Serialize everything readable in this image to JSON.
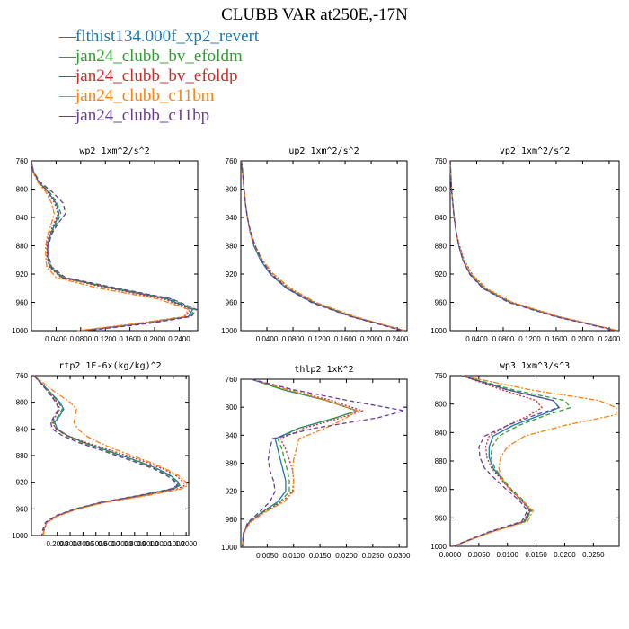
{
  "title": "CLUBB VAR at250E,-17N",
  "legend": [
    {
      "name": "flthist134.000f_xp2_revert",
      "color": "#1f77b4",
      "dash": "solid"
    },
    {
      "name": "jan24_clubb_bv_efoldm",
      "color": "#2ca02c",
      "dash": "dashed"
    },
    {
      "name": "jan24_clubb_bv_efoldp",
      "color": "#d62728",
      "dash": "dotted"
    },
    {
      "name": "jan24_clubb_c11bm",
      "color": "#ff7f0e",
      "dash": "dashdot"
    },
    {
      "name": "jan24_clubb_c11bp",
      "color": "#6a3d9a",
      "dash": "dashed"
    }
  ],
  "chart_data": [
    {
      "type": "line",
      "title": "wp2   1xm^2/s^2",
      "xlim": [
        0,
        0.27
      ],
      "ylim": [
        760,
        1000
      ],
      "y_inverted": true,
      "xticks": [
        0.04,
        0.08,
        0.12,
        0.16,
        0.2,
        0.24
      ],
      "xtick_labels": [
        "0.0400",
        "0.0800",
        "0.1200",
        "0.1600",
        "0.2000",
        "0.2400"
      ],
      "yticks": [
        760,
        800,
        840,
        880,
        920,
        960,
        1000
      ],
      "y": [
        760,
        775,
        790,
        805,
        820,
        835,
        850,
        865,
        880,
        895,
        910,
        925,
        940,
        955,
        970,
        980,
        990,
        1000
      ],
      "series": [
        {
          "x": [
            0.0,
            0.003,
            0.012,
            0.028,
            0.04,
            0.045,
            0.038,
            0.03,
            0.026,
            0.026,
            0.03,
            0.05,
            0.13,
            0.22,
            0.262,
            0.255,
            0.18,
            0.08
          ]
        },
        {
          "x": [
            0.0,
            0.003,
            0.013,
            0.03,
            0.042,
            0.048,
            0.04,
            0.031,
            0.027,
            0.027,
            0.032,
            0.052,
            0.135,
            0.225,
            0.265,
            0.258,
            0.185,
            0.085
          ]
        },
        {
          "x": [
            0.0,
            0.003,
            0.011,
            0.027,
            0.038,
            0.043,
            0.036,
            0.028,
            0.025,
            0.025,
            0.029,
            0.048,
            0.125,
            0.215,
            0.258,
            0.25,
            0.175,
            0.078
          ]
        },
        {
          "x": [
            0.0,
            0.002,
            0.01,
            0.024,
            0.033,
            0.037,
            0.032,
            0.026,
            0.023,
            0.023,
            0.025,
            0.04,
            0.11,
            0.205,
            0.255,
            0.248,
            0.17,
            0.075
          ]
        },
        {
          "x": [
            0.0,
            0.003,
            0.014,
            0.035,
            0.052,
            0.055,
            0.042,
            0.032,
            0.028,
            0.028,
            0.033,
            0.055,
            0.14,
            0.228,
            0.268,
            0.26,
            0.19,
            0.088
          ]
        }
      ]
    },
    {
      "type": "line",
      "title": "up2   1xm^2/s^2",
      "xlim": [
        0,
        0.255
      ],
      "ylim": [
        760,
        1000
      ],
      "y_inverted": true,
      "xticks": [
        0.04,
        0.08,
        0.12,
        0.16,
        0.2,
        0.24
      ],
      "xtick_labels": [
        "0.0400",
        "0.0800",
        "0.1200",
        "0.1600",
        "0.2000",
        "0.2400"
      ],
      "yticks": [
        760,
        800,
        840,
        880,
        920,
        960,
        1000
      ],
      "y": [
        760,
        780,
        800,
        820,
        840,
        860,
        880,
        900,
        920,
        940,
        960,
        980,
        1000
      ],
      "series": [
        {
          "x": [
            0.001,
            0.003,
            0.005,
            0.007,
            0.01,
            0.014,
            0.02,
            0.03,
            0.045,
            0.07,
            0.11,
            0.17,
            0.25
          ]
        },
        {
          "x": [
            0.001,
            0.003,
            0.005,
            0.007,
            0.01,
            0.014,
            0.021,
            0.031,
            0.047,
            0.072,
            0.112,
            0.172,
            0.25
          ]
        },
        {
          "x": [
            0.001,
            0.003,
            0.005,
            0.007,
            0.01,
            0.015,
            0.022,
            0.033,
            0.049,
            0.074,
            0.114,
            0.174,
            0.252
          ]
        },
        {
          "x": [
            0.001,
            0.003,
            0.005,
            0.007,
            0.01,
            0.014,
            0.021,
            0.033,
            0.05,
            0.076,
            0.115,
            0.175,
            0.25
          ]
        },
        {
          "x": [
            0.001,
            0.003,
            0.005,
            0.007,
            0.01,
            0.015,
            0.022,
            0.032,
            0.046,
            0.07,
            0.108,
            0.168,
            0.248
          ]
        }
      ]
    },
    {
      "type": "line",
      "title": "vp2   1xm^2/s^2",
      "xlim": [
        0,
        0.255
      ],
      "ylim": [
        760,
        1000
      ],
      "y_inverted": true,
      "xticks": [
        0.04,
        0.08,
        0.12,
        0.16,
        0.2,
        0.24
      ],
      "xtick_labels": [
        "0.0400",
        "0.0800",
        "0.1200",
        "0.1600",
        "0.2000",
        "0.2400"
      ],
      "yticks": [
        760,
        800,
        840,
        880,
        920,
        960,
        1000
      ],
      "y": [
        760,
        780,
        800,
        820,
        840,
        860,
        880,
        900,
        920,
        940,
        960,
        980,
        1000
      ],
      "series": [
        {
          "x": [
            0.0,
            0.001,
            0.002,
            0.004,
            0.006,
            0.009,
            0.013,
            0.019,
            0.03,
            0.05,
            0.09,
            0.16,
            0.252
          ]
        },
        {
          "x": [
            0.0,
            0.001,
            0.002,
            0.004,
            0.006,
            0.009,
            0.013,
            0.02,
            0.031,
            0.052,
            0.092,
            0.162,
            0.252
          ]
        },
        {
          "x": [
            0.0,
            0.001,
            0.002,
            0.004,
            0.006,
            0.009,
            0.014,
            0.021,
            0.033,
            0.054,
            0.094,
            0.164,
            0.253
          ]
        },
        {
          "x": [
            0.0,
            0.001,
            0.002,
            0.004,
            0.006,
            0.009,
            0.013,
            0.02,
            0.032,
            0.053,
            0.093,
            0.163,
            0.252
          ]
        },
        {
          "x": [
            0.0,
            0.001,
            0.002,
            0.004,
            0.006,
            0.009,
            0.013,
            0.019,
            0.029,
            0.049,
            0.088,
            0.158,
            0.25
          ]
        }
      ]
    },
    {
      "type": "line",
      "title": "rtp2   1E-6x(kg/kg)^2",
      "xlim": [
        0,
        1.22
      ],
      "ylim": [
        760,
        1000
      ],
      "y_inverted": true,
      "xticks": [
        0.2,
        0.3,
        0.4,
        0.5,
        0.6,
        0.7,
        0.8,
        0.9,
        1.0,
        1.1,
        1.2
      ],
      "xtick_labels": [
        "0.2000",
        "0.3000",
        "0.4000",
        "0.5000",
        "0.6000",
        "0.7000",
        "0.8000",
        "0.9000",
        "1.0000",
        "1.1000",
        "1.2000"
      ],
      "yticks": [
        760,
        800,
        840,
        880,
        920,
        960,
        1000
      ],
      "y": [
        760,
        780,
        800,
        810,
        820,
        830,
        840,
        850,
        860,
        870,
        880,
        890,
        900,
        910,
        920,
        925,
        930,
        940,
        950,
        960,
        970,
        980,
        990,
        1000
      ],
      "series": [
        {
          "x": [
            0.02,
            0.12,
            0.22,
            0.25,
            0.22,
            0.18,
            0.2,
            0.28,
            0.4,
            0.55,
            0.7,
            0.85,
            0.98,
            1.08,
            1.14,
            1.15,
            1.1,
            0.85,
            0.55,
            0.35,
            0.2,
            0.12,
            0.1,
            0.09
          ]
        },
        {
          "x": [
            0.02,
            0.12,
            0.21,
            0.24,
            0.21,
            0.17,
            0.19,
            0.27,
            0.39,
            0.54,
            0.69,
            0.84,
            0.97,
            1.07,
            1.13,
            1.14,
            1.09,
            0.84,
            0.55,
            0.35,
            0.2,
            0.12,
            0.1,
            0.09
          ]
        },
        {
          "x": [
            0.02,
            0.11,
            0.2,
            0.22,
            0.19,
            0.16,
            0.19,
            0.28,
            0.42,
            0.58,
            0.74,
            0.89,
            1.02,
            1.12,
            1.18,
            1.19,
            1.13,
            0.87,
            0.57,
            0.36,
            0.21,
            0.12,
            0.1,
            0.09
          ]
        },
        {
          "x": [
            0.02,
            0.15,
            0.3,
            0.35,
            0.34,
            0.33,
            0.36,
            0.42,
            0.52,
            0.64,
            0.78,
            0.92,
            1.04,
            1.14,
            1.2,
            1.21,
            1.16,
            0.9,
            0.58,
            0.36,
            0.21,
            0.12,
            0.1,
            0.09
          ]
        },
        {
          "x": [
            0.02,
            0.11,
            0.19,
            0.21,
            0.18,
            0.15,
            0.16,
            0.24,
            0.36,
            0.51,
            0.66,
            0.81,
            0.95,
            1.05,
            1.12,
            1.13,
            1.08,
            0.83,
            0.54,
            0.34,
            0.19,
            0.11,
            0.09,
            0.08
          ]
        }
      ]
    },
    {
      "type": "line",
      "title": "thlp2   1xK^2",
      "xlim": [
        0,
        0.0315
      ],
      "ylim": [
        760,
        1000
      ],
      "y_inverted": true,
      "xticks": [
        0.005,
        0.01,
        0.015,
        0.02,
        0.025,
        0.03
      ],
      "xtick_labels": [
        "0.0050",
        "0.0100",
        "0.0150",
        "0.0200",
        "0.0250",
        "0.0300"
      ],
      "yticks": [
        760,
        800,
        840,
        880,
        920,
        960,
        1000
      ],
      "y": [
        760,
        775,
        790,
        805,
        815,
        830,
        845,
        860,
        875,
        890,
        905,
        920,
        935,
        950,
        965,
        980,
        1000
      ],
      "series": [
        {
          "x": [
            0.002,
            0.008,
            0.016,
            0.022,
            0.018,
            0.011,
            0.0065,
            0.007,
            0.0075,
            0.008,
            0.0085,
            0.0085,
            0.007,
            0.004,
            0.0015,
            0.0005,
            0.0003
          ]
        },
        {
          "x": [
            0.002,
            0.008,
            0.016,
            0.022,
            0.018,
            0.011,
            0.007,
            0.0078,
            0.0083,
            0.0088,
            0.0092,
            0.0092,
            0.0075,
            0.0042,
            0.0015,
            0.0005,
            0.0003
          ]
        },
        {
          "x": [
            0.002,
            0.009,
            0.017,
            0.023,
            0.019,
            0.012,
            0.0075,
            0.0085,
            0.0092,
            0.0098,
            0.01,
            0.0098,
            0.0078,
            0.0044,
            0.0016,
            0.0005,
            0.0003
          ]
        },
        {
          "x": [
            0.002,
            0.009,
            0.016,
            0.022,
            0.02,
            0.016,
            0.011,
            0.0105,
            0.01,
            0.0098,
            0.01,
            0.01,
            0.0082,
            0.0046,
            0.0017,
            0.0006,
            0.0003
          ]
        },
        {
          "x": [
            0.002,
            0.01,
            0.02,
            0.031,
            0.026,
            0.014,
            0.006,
            0.0055,
            0.0052,
            0.0055,
            0.0062,
            0.0065,
            0.0055,
            0.0035,
            0.0013,
            0.0005,
            0.0003
          ]
        }
      ]
    },
    {
      "type": "line",
      "title": "wp3   1xm^3/s^3",
      "xlim": [
        0,
        0.0295
      ],
      "ylim": [
        760,
        1000
      ],
      "y_inverted": true,
      "xticks": [
        0.0,
        0.005,
        0.01,
        0.015,
        0.02,
        0.025
      ],
      "xtick_labels": [
        "0.0000",
        "0.0050",
        "0.0100",
        "0.0150",
        "0.0200",
        "0.0250"
      ],
      "yticks": [
        760,
        800,
        840,
        880,
        920,
        960,
        1000
      ],
      "y": [
        760,
        780,
        795,
        805,
        815,
        830,
        845,
        860,
        875,
        890,
        905,
        920,
        935,
        950,
        965,
        980,
        1000
      ],
      "series": [
        {
          "x": [
            0.002,
            0.01,
            0.018,
            0.019,
            0.016,
            0.011,
            0.0075,
            0.0068,
            0.0068,
            0.0075,
            0.009,
            0.0105,
            0.0125,
            0.014,
            0.013,
            0.007,
            0.0005
          ]
        },
        {
          "x": [
            0.002,
            0.011,
            0.02,
            0.021,
            0.017,
            0.012,
            0.0085,
            0.0073,
            0.0071,
            0.0078,
            0.0092,
            0.0107,
            0.0127,
            0.0142,
            0.0131,
            0.007,
            0.0005
          ]
        },
        {
          "x": [
            0.002,
            0.009,
            0.015,
            0.016,
            0.014,
            0.01,
            0.0068,
            0.0062,
            0.0064,
            0.0072,
            0.0088,
            0.0104,
            0.0124,
            0.0138,
            0.0128,
            0.0069,
            0.0005
          ]
        },
        {
          "x": [
            0.002,
            0.014,
            0.026,
            0.029,
            0.029,
            0.02,
            0.013,
            0.01,
            0.0088,
            0.0085,
            0.009,
            0.0105,
            0.0125,
            0.0145,
            0.0135,
            0.0072,
            0.0005
          ]
        },
        {
          "x": [
            0.002,
            0.01,
            0.018,
            0.019,
            0.015,
            0.01,
            0.006,
            0.005,
            0.0052,
            0.006,
            0.0078,
            0.0098,
            0.012,
            0.0135,
            0.0125,
            0.0066,
            0.0005
          ]
        }
      ]
    }
  ]
}
